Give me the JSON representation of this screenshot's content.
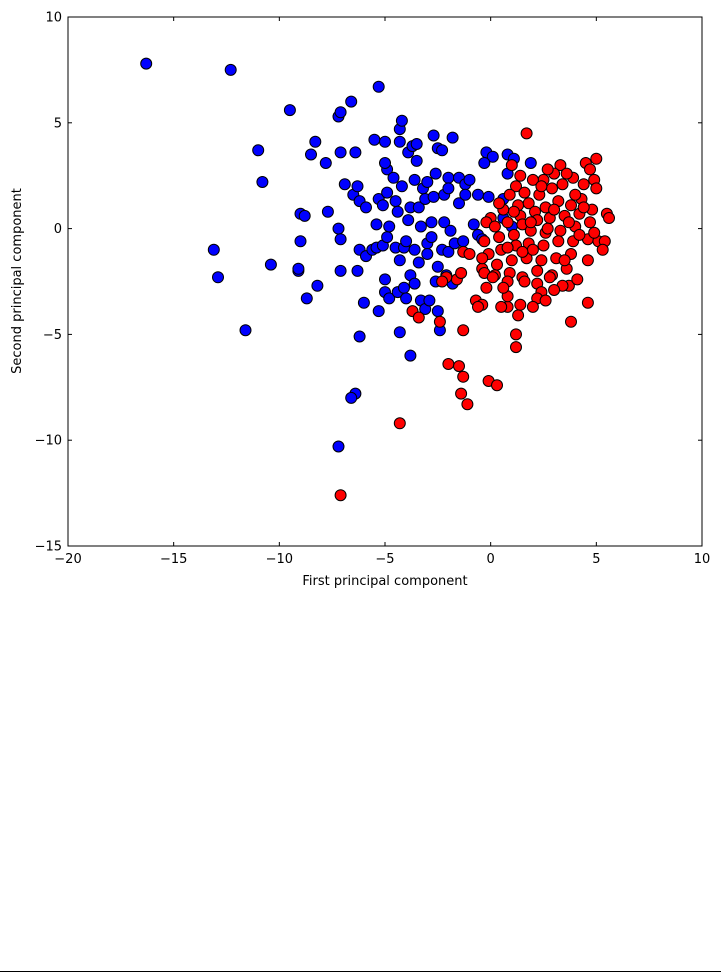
{
  "chart_data": {
    "type": "scatter",
    "title": "",
    "xlabel": "First principal component",
    "ylabel": "Second principal component",
    "xlim": [
      -20,
      10
    ],
    "ylim": [
      -15,
      10
    ],
    "xticks": [
      -20,
      -15,
      -10,
      -5,
      0,
      5,
      10
    ],
    "xtick_labels": [
      "−20",
      "−15",
      "−10",
      "−5",
      "0",
      "5",
      "10"
    ],
    "yticks": [
      -15,
      -10,
      -5,
      0,
      5,
      10
    ],
    "ytick_labels": [
      "−15",
      "−10",
      "−5",
      "0",
      "5",
      "10"
    ],
    "grid": false,
    "legend": "none",
    "series": [
      {
        "color": "#0000ff",
        "points": [
          [
            -16.3,
            7.8
          ],
          [
            -12.3,
            7.5
          ],
          [
            -9.5,
            5.6
          ],
          [
            -7.2,
            5.3
          ],
          [
            -7.1,
            5.5
          ],
          [
            -6.6,
            6.0
          ],
          [
            -5.3,
            6.7
          ],
          [
            -11.0,
            3.7
          ],
          [
            -10.8,
            2.2
          ],
          [
            -8.5,
            3.5
          ],
          [
            -8.3,
            4.1
          ],
          [
            -7.8,
            3.1
          ],
          [
            -7.1,
            3.6
          ],
          [
            -6.4,
            3.6
          ],
          [
            -5.5,
            4.2
          ],
          [
            -5.0,
            4.1
          ],
          [
            -4.3,
            4.1
          ],
          [
            -4.3,
            4.7
          ],
          [
            -4.2,
            5.1
          ],
          [
            -3.9,
            3.6
          ],
          [
            -3.7,
            3.9
          ],
          [
            -3.5,
            4.0
          ],
          [
            -3.5,
            3.2
          ],
          [
            -2.7,
            4.4
          ],
          [
            -2.5,
            3.8
          ],
          [
            -2.3,
            3.7
          ],
          [
            -1.8,
            4.3
          ],
          [
            -4.9,
            2.8
          ],
          [
            -5.0,
            3.1
          ],
          [
            -4.6,
            2.4
          ],
          [
            -4.2,
            2.0
          ],
          [
            -3.6,
            2.3
          ],
          [
            -3.2,
            1.9
          ],
          [
            -3.0,
            2.2
          ],
          [
            -2.6,
            2.6
          ],
          [
            -2.0,
            2.4
          ],
          [
            -1.5,
            2.4
          ],
          [
            -1.2,
            2.1
          ],
          [
            -1.0,
            2.3
          ],
          [
            -0.2,
            3.6
          ],
          [
            0.1,
            3.4
          ],
          [
            -0.3,
            3.1
          ],
          [
            -0.6,
            1.6
          ],
          [
            -0.1,
            1.5
          ],
          [
            0.6,
            1.4
          ],
          [
            0.8,
            2.6
          ],
          [
            0.8,
            3.5
          ],
          [
            1.1,
            3.3
          ],
          [
            1.9,
            3.1
          ],
          [
            -9.0,
            0.7
          ],
          [
            -8.8,
            0.6
          ],
          [
            -7.7,
            0.8
          ],
          [
            -6.5,
            1.6
          ],
          [
            -6.3,
            2.0
          ],
          [
            -6.2,
            1.3
          ],
          [
            -5.9,
            1.0
          ],
          [
            -5.3,
            1.4
          ],
          [
            -5.1,
            1.1
          ],
          [
            -4.9,
            1.7
          ],
          [
            -4.5,
            1.3
          ],
          [
            -4.4,
            0.8
          ],
          [
            -3.8,
            1.0
          ],
          [
            -3.4,
            1.0
          ],
          [
            -3.1,
            1.4
          ],
          [
            -2.7,
            1.5
          ],
          [
            -2.2,
            1.6
          ],
          [
            -2.0,
            1.9
          ],
          [
            -1.5,
            1.2
          ],
          [
            -1.2,
            1.6
          ],
          [
            -6.9,
            2.1
          ],
          [
            -13.1,
            -1.0
          ],
          [
            -12.9,
            -2.3
          ],
          [
            -10.4,
            -1.7
          ],
          [
            -9.1,
            -2.0
          ],
          [
            -9.0,
            -0.6
          ],
          [
            -8.7,
            -3.3
          ],
          [
            -8.2,
            -2.7
          ],
          [
            -7.2,
            0.0
          ],
          [
            -7.1,
            -0.5
          ],
          [
            -7.1,
            -2.0
          ],
          [
            -6.3,
            -2.0
          ],
          [
            -6.2,
            -1.0
          ],
          [
            -5.9,
            -1.3
          ],
          [
            -5.6,
            -1.0
          ],
          [
            -5.4,
            -0.9
          ],
          [
            -5.1,
            -0.8
          ],
          [
            -4.9,
            -0.4
          ],
          [
            -4.5,
            -0.9
          ],
          [
            -4.3,
            -1.5
          ],
          [
            -4.1,
            -0.9
          ],
          [
            -4.0,
            -0.6
          ],
          [
            -3.6,
            -1.0
          ],
          [
            -3.4,
            -1.6
          ],
          [
            -3.0,
            -0.7
          ],
          [
            -2.8,
            -0.4
          ],
          [
            -2.3,
            -1.0
          ],
          [
            -2.0,
            -1.1
          ],
          [
            -1.7,
            -0.7
          ],
          [
            -1.3,
            -0.6
          ],
          [
            -0.6,
            -0.3
          ],
          [
            -0.4,
            -0.5
          ],
          [
            -5.4,
            0.2
          ],
          [
            -4.8,
            0.1
          ],
          [
            -3.9,
            0.4
          ],
          [
            -3.3,
            0.1
          ],
          [
            -2.8,
            0.3
          ],
          [
            -2.2,
            0.3
          ],
          [
            -1.9,
            -0.1
          ],
          [
            -0.8,
            0.2
          ],
          [
            0.6,
            0.5
          ],
          [
            1.0,
            0.1
          ],
          [
            -11.6,
            -4.8
          ],
          [
            -9.1,
            -1.9
          ],
          [
            -6.2,
            -5.1
          ],
          [
            -6.0,
            -3.5
          ],
          [
            -5.3,
            -3.9
          ],
          [
            -5.0,
            -3.0
          ],
          [
            -4.8,
            -3.3
          ],
          [
            -4.4,
            -3.0
          ],
          [
            -4.1,
            -2.8
          ],
          [
            -3.8,
            -2.2
          ],
          [
            -3.6,
            -2.6
          ],
          [
            -3.3,
            -3.4
          ],
          [
            -3.1,
            -3.8
          ],
          [
            -2.9,
            -3.4
          ],
          [
            -2.6,
            -2.5
          ],
          [
            -2.5,
            -3.9
          ],
          [
            -2.4,
            -4.8
          ],
          [
            -2.1,
            -2.2
          ],
          [
            -1.8,
            -2.6
          ],
          [
            -4.3,
            -4.9
          ],
          [
            -3.8,
            -6.0
          ],
          [
            -6.4,
            -7.8
          ],
          [
            -6.6,
            -8.0
          ],
          [
            -7.2,
            -10.3
          ],
          [
            -3.0,
            -1.2
          ],
          [
            -2.5,
            -1.8
          ],
          [
            -5.0,
            -2.4
          ],
          [
            -4.0,
            -3.3
          ]
        ]
      },
      {
        "color": "#ff0000",
        "points": [
          [
            1.7,
            4.5
          ],
          [
            5.0,
            3.3
          ],
          [
            4.5,
            3.1
          ],
          [
            4.7,
            2.8
          ],
          [
            3.3,
            3.0
          ],
          [
            3.0,
            2.6
          ],
          [
            2.5,
            2.3
          ],
          [
            2.0,
            2.3
          ],
          [
            1.2,
            2.0
          ],
          [
            0.9,
            1.6
          ],
          [
            1.3,
            1.1
          ],
          [
            1.8,
            1.2
          ],
          [
            2.3,
            1.6
          ],
          [
            2.9,
            1.9
          ],
          [
            3.4,
            2.1
          ],
          [
            3.9,
            2.4
          ],
          [
            4.4,
            2.1
          ],
          [
            4.9,
            2.3
          ],
          [
            5.0,
            1.9
          ],
          [
            4.3,
            1.4
          ],
          [
            3.8,
            1.1
          ],
          [
            3.2,
            1.3
          ],
          [
            2.6,
            1.0
          ],
          [
            2.1,
            0.8
          ],
          [
            1.4,
            0.6
          ],
          [
            0.6,
            0.9
          ],
          [
            0.0,
            0.5
          ],
          [
            -0.2,
            0.3
          ],
          [
            0.2,
            0.1
          ],
          [
            0.8,
            0.3
          ],
          [
            1.5,
            0.2
          ],
          [
            2.2,
            0.4
          ],
          [
            2.8,
            0.5
          ],
          [
            3.5,
            0.6
          ],
          [
            4.2,
            0.7
          ],
          [
            4.8,
            0.9
          ],
          [
            5.5,
            0.7
          ],
          [
            5.6,
            0.5
          ],
          [
            4.7,
            0.3
          ],
          [
            4.0,
            0.1
          ],
          [
            3.3,
            -0.1
          ],
          [
            2.6,
            -0.2
          ],
          [
            1.9,
            -0.1
          ],
          [
            1.1,
            -0.3
          ],
          [
            0.4,
            -0.4
          ],
          [
            -0.3,
            -0.6
          ],
          [
            -0.1,
            -1.2
          ],
          [
            0.5,
            -1.0
          ],
          [
            1.2,
            -0.8
          ],
          [
            1.8,
            -0.7
          ],
          [
            2.5,
            -0.8
          ],
          [
            3.2,
            -0.6
          ],
          [
            3.9,
            -0.6
          ],
          [
            4.6,
            -0.5
          ],
          [
            5.1,
            -0.6
          ],
          [
            5.4,
            -0.6
          ],
          [
            5.3,
            -1.0
          ],
          [
            4.6,
            -1.5
          ],
          [
            3.8,
            -1.2
          ],
          [
            3.1,
            -1.4
          ],
          [
            2.4,
            -1.5
          ],
          [
            1.7,
            -1.4
          ],
          [
            1.0,
            -1.5
          ],
          [
            0.3,
            -1.7
          ],
          [
            -0.4,
            -1.9
          ],
          [
            -0.3,
            -2.1
          ],
          [
            0.2,
            -2.2
          ],
          [
            0.9,
            -2.1
          ],
          [
            1.5,
            -2.3
          ],
          [
            2.2,
            -2.0
          ],
          [
            2.9,
            -2.2
          ],
          [
            3.6,
            -1.9
          ],
          [
            -1.3,
            -1.1
          ],
          [
            -1.0,
            -1.2
          ],
          [
            -1.6,
            -2.4
          ],
          [
            -1.4,
            -2.1
          ],
          [
            -2.1,
            -2.3
          ],
          [
            -2.3,
            -2.5
          ],
          [
            -0.4,
            -1.4
          ],
          [
            0.1,
            -2.3
          ],
          [
            0.8,
            -2.5
          ],
          [
            1.6,
            -2.5
          ],
          [
            2.2,
            -2.6
          ],
          [
            2.8,
            -2.3
          ],
          [
            2.4,
            -3.0
          ],
          [
            2.2,
            -3.3
          ],
          [
            2.0,
            -3.7
          ],
          [
            1.4,
            -3.6
          ],
          [
            0.8,
            -3.7
          ],
          [
            0.5,
            -3.7
          ],
          [
            0.8,
            -3.2
          ],
          [
            1.3,
            -4.1
          ],
          [
            -0.7,
            -3.4
          ],
          [
            -0.4,
            -3.6
          ],
          [
            -0.6,
            -3.7
          ],
          [
            -1.3,
            -4.8
          ],
          [
            -2.4,
            -4.4
          ],
          [
            -3.7,
            -3.9
          ],
          [
            -3.4,
            -4.2
          ],
          [
            -2.0,
            -6.4
          ],
          [
            -1.5,
            -6.5
          ],
          [
            -1.3,
            -7.0
          ],
          [
            -1.4,
            -7.8
          ],
          [
            -1.1,
            -8.3
          ],
          [
            -0.1,
            -7.2
          ],
          [
            0.3,
            -7.4
          ],
          [
            1.2,
            -5.0
          ],
          [
            1.2,
            -5.6
          ],
          [
            3.7,
            -2.7
          ],
          [
            3.4,
            -2.7
          ],
          [
            4.1,
            -2.4
          ],
          [
            4.6,
            -3.5
          ],
          [
            3.8,
            -4.4
          ],
          [
            -4.3,
            -9.2
          ],
          [
            -7.1,
            -12.6
          ],
          [
            1.0,
            3.0
          ],
          [
            1.4,
            2.5
          ],
          [
            2.7,
            2.8
          ],
          [
            3.6,
            2.6
          ],
          [
            4.0,
            1.6
          ],
          [
            2.4,
            2.0
          ],
          [
            3.0,
            0.9
          ],
          [
            1.6,
            1.7
          ],
          [
            2.0,
            -1.0
          ],
          [
            3.5,
            -1.5
          ],
          [
            4.2,
            -0.3
          ],
          [
            1.5,
            -1.1
          ],
          [
            0.8,
            -0.9
          ],
          [
            2.7,
            0.0
          ],
          [
            4.4,
            1.0
          ],
          [
            3.0,
            -2.9
          ],
          [
            2.6,
            -3.4
          ],
          [
            0.4,
            1.2
          ],
          [
            0.6,
            -2.8
          ],
          [
            1.9,
            0.3
          ],
          [
            3.7,
            0.3
          ],
          [
            4.9,
            -0.2
          ],
          [
            -0.2,
            -2.8
          ],
          [
            1.1,
            0.8
          ]
        ]
      }
    ]
  }
}
